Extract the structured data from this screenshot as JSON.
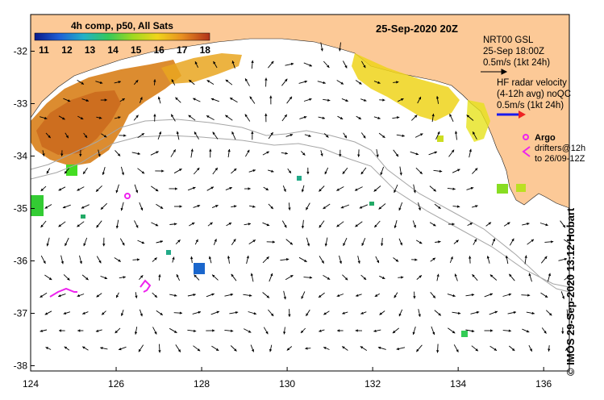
{
  "map": {
    "date_title": "25-Sep-2020 20Z",
    "lon_ticks": [
      "124",
      "126",
      "128",
      "130",
      "132",
      "134",
      "136"
    ],
    "lat_ticks": [
      "-32",
      "-33",
      "-34",
      "-35",
      "-36",
      "-37",
      "-38"
    ],
    "extent": {
      "lon_min": 124,
      "lon_max": 136.6,
      "lat_min": -38.1,
      "lat_max": -31.3
    }
  },
  "colorbar": {
    "title": "4h comp, p50, All Sats",
    "ticks": [
      "11",
      "12",
      "13",
      "14",
      "15",
      "16",
      "17",
      "18"
    ],
    "vmin": 10.6,
    "vmax": 18.2
  },
  "legend": {
    "model_name": "NRT00 GSL",
    "model_time": "25-Sep 18:00Z",
    "model_scale": "0.5m/s (1kt 24h)",
    "radar_title": "HF radar velocity",
    "radar_avg": "(4-12h avg) noQC",
    "radar_scale": "0.5m/s (1kt 24h)",
    "argo_label": "Argo",
    "drifters_line1": "drifters@12h",
    "drifters_line2": "to 26/09-12Z"
  },
  "credit": "© IMOS 29-Sep-2020 13:12 Hobart",
  "colors": {
    "land": "#fcc997",
    "bathymetry": "#a6a6a6",
    "arrow": "#000000",
    "radar_arrow": "#1a1aee",
    "argo": "#ee22ee",
    "drifter": "#ee22ee"
  }
}
